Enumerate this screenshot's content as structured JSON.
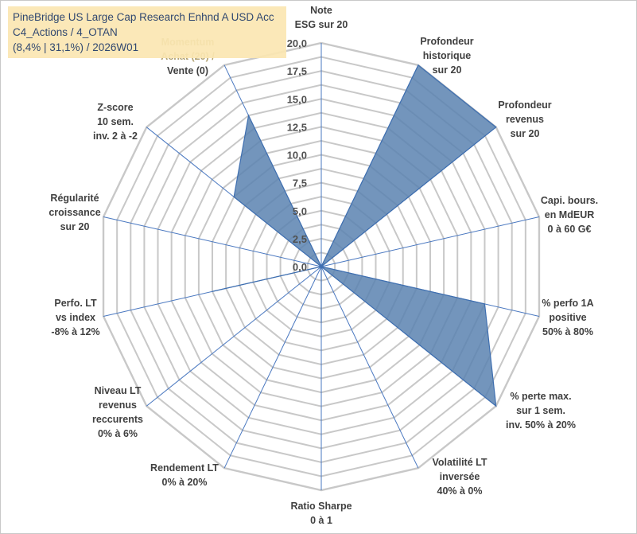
{
  "header": {
    "line1": "PineBridge US Large Cap Research Enhnd A USD Acc",
    "line2": "C4_Actions / 4_OTAN",
    "line3": "(8,4% | 31,1%) / 2026W01"
  },
  "colors": {
    "fill": "#5b82b0",
    "stroke": "#3f6fb0",
    "grid": "#c8c8c8",
    "spoke": "#4a78c0",
    "title_bg": "#fbe7b2",
    "title_text": "#1f3864"
  },
  "chart_data": {
    "type": "radar",
    "rmax": 20,
    "ticks": [
      "0,0",
      "2,5",
      "5,0",
      "7,5",
      "10,0",
      "12,5",
      "15,0",
      "17,5",
      "20,0"
    ],
    "tick_values": [
      0,
      2.5,
      5,
      7.5,
      10,
      12.5,
      15,
      17.5,
      20
    ],
    "axes": [
      [
        "Note",
        "ESG sur 20"
      ],
      [
        "Profondeur",
        "historique",
        "sur 20"
      ],
      [
        "Profondeur",
        "revenus",
        "sur 20"
      ],
      [
        "Capi. bours.",
        "en MdEUR",
        "0 à 60 G€"
      ],
      [
        "% perfo 1A",
        "positive",
        "50% à 80%"
      ],
      [
        "% perte max.",
        "sur 1 sem.",
        "inv. 50% à 20%"
      ],
      [
        "Volatilité LT",
        "inversée",
        "40% à 0%"
      ],
      [
        "Ratio Sharpe",
        "0 à 1"
      ],
      [
        "Rendement LT",
        "0% à 20%"
      ],
      [
        "Niveau LT",
        "revenus",
        "reccurents",
        "0% à 6%"
      ],
      [
        "Perfo. LT",
        "vs index",
        "-8% à 12%"
      ],
      [
        "Régularité",
        "croissance",
        "sur 20"
      ],
      [
        "Z-score",
        "10 sem.",
        "inv. 2 à -2"
      ],
      [
        "Momentum",
        "Achat (20) /",
        "Vente (0)"
      ]
    ],
    "values": [
      0,
      20,
      20,
      0,
      15,
      20,
      0,
      5,
      0,
      0,
      10,
      0,
      10,
      15
    ],
    "grid": true
  }
}
